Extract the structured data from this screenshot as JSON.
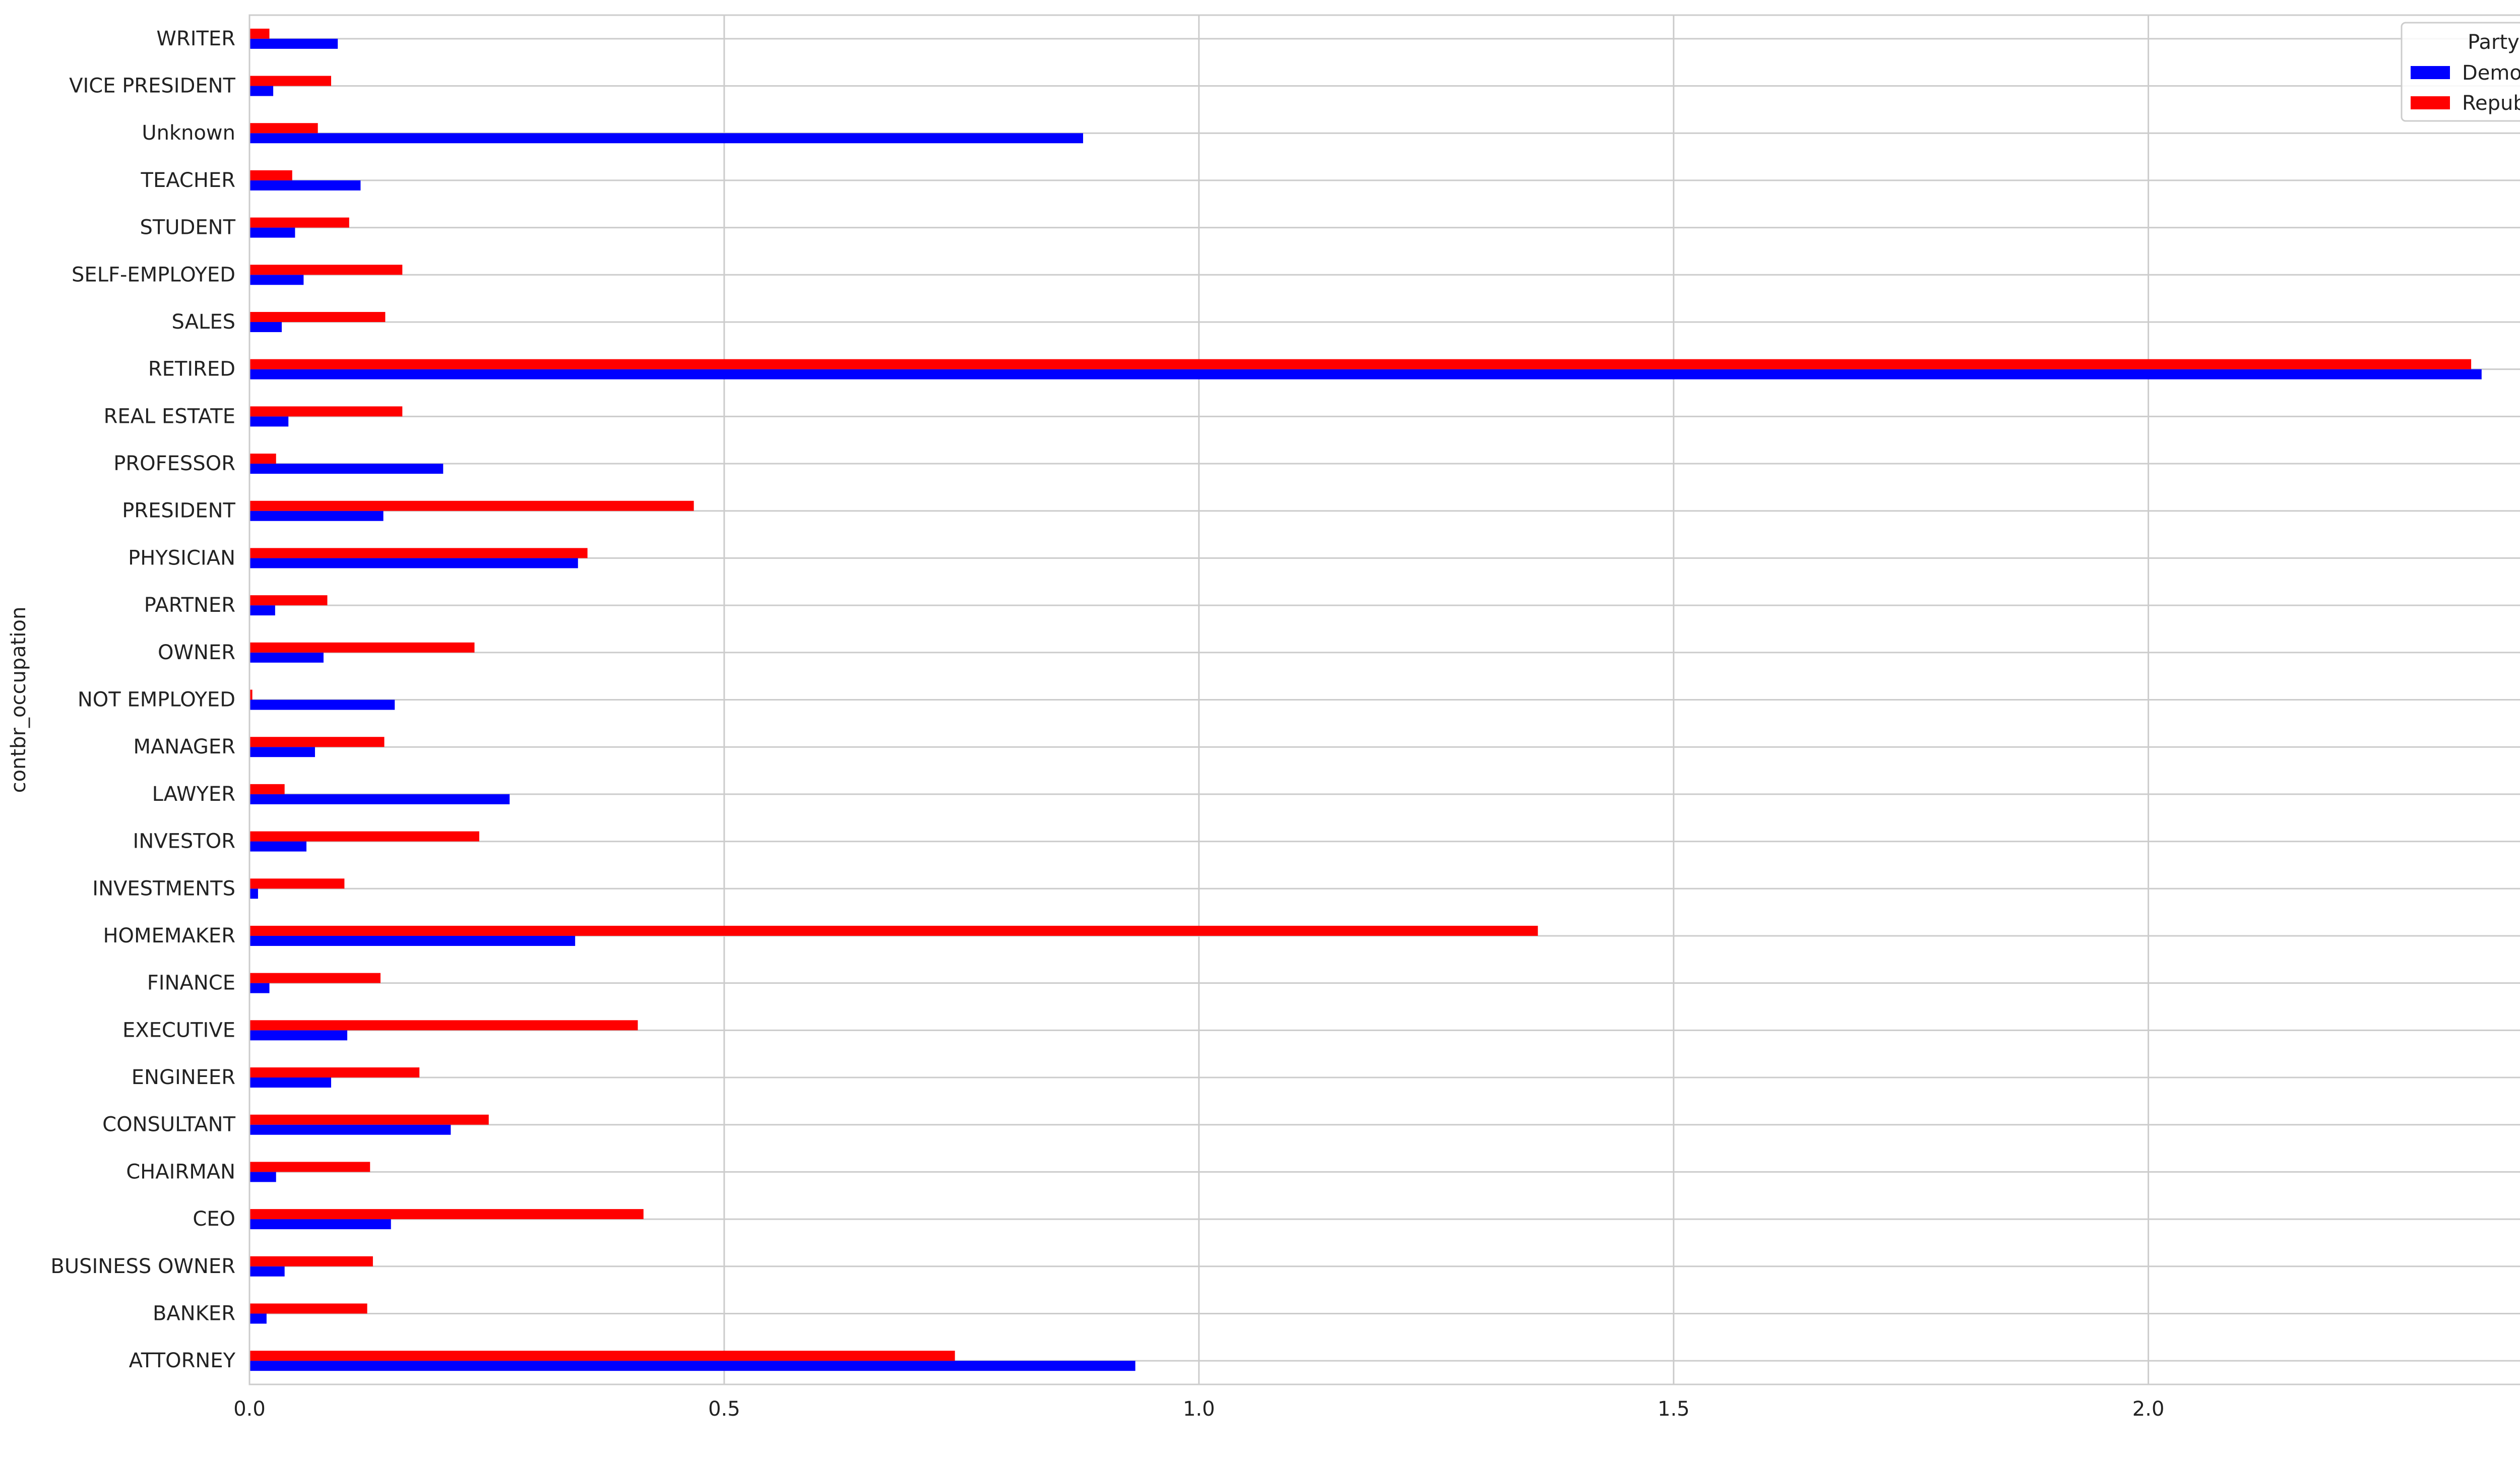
{
  "chart_data": {
    "type": "bar",
    "orientation": "horizontal",
    "title": "",
    "xlabel": "",
    "ylabel": "contbr_occupation",
    "x_scale_note": "1e7",
    "xlim": [
      0,
      24700000
    ],
    "x_ticks": [
      0,
      5000000,
      10000000,
      15000000,
      20000000
    ],
    "x_tick_labels": [
      "0.0",
      "0.5",
      "1.0",
      "1.5",
      "2.0"
    ],
    "grid": true,
    "legend": {
      "title": "Party",
      "placement": "top-right"
    },
    "categories": [
      "ATTORNEY",
      "BANKER",
      "BUSINESS OWNER",
      "CEO",
      "CHAIRMAN",
      "CONSULTANT",
      "ENGINEER",
      "EXECUTIVE",
      "FINANCE",
      "HOMEMAKER",
      "INVESTMENTS",
      "INVESTOR",
      "LAWYER",
      "MANAGER",
      "NOT EMPLOYED",
      "OWNER",
      "PARTNER",
      "PHYSICIAN",
      "PRESIDENT",
      "PROFESSOR",
      "REAL ESTATE",
      "RETIRED",
      "SALES",
      "SELF-EMPLOYED",
      "STUDENT",
      "TEACHER",
      "Unknown",
      "VICE PRESIDENT",
      "WRITER"
    ],
    "series": [
      {
        "name": "Democrat",
        "color": "#0000ff",
        "values": [
          9330000,
          180000,
          370000,
          1490000,
          280000,
          2120000,
          860000,
          1030000,
          210000,
          3430000,
          90000,
          600000,
          2740000,
          690000,
          1530000,
          780000,
          270000,
          3460000,
          1410000,
          2040000,
          410000,
          23510000,
          340000,
          570000,
          480000,
          1170000,
          8780000,
          250000,
          930000
        ]
      },
      {
        "name": "Republican",
        "color": "#ff0000",
        "values": [
          7430000,
          1240000,
          1300000,
          4150000,
          1270000,
          2520000,
          1790000,
          4090000,
          1380000,
          13570000,
          1000000,
          2420000,
          370000,
          1420000,
          30000,
          2370000,
          820000,
          3560000,
          4680000,
          280000,
          1610000,
          23400000,
          1430000,
          1610000,
          1050000,
          450000,
          720000,
          860000,
          210000
        ]
      }
    ]
  }
}
